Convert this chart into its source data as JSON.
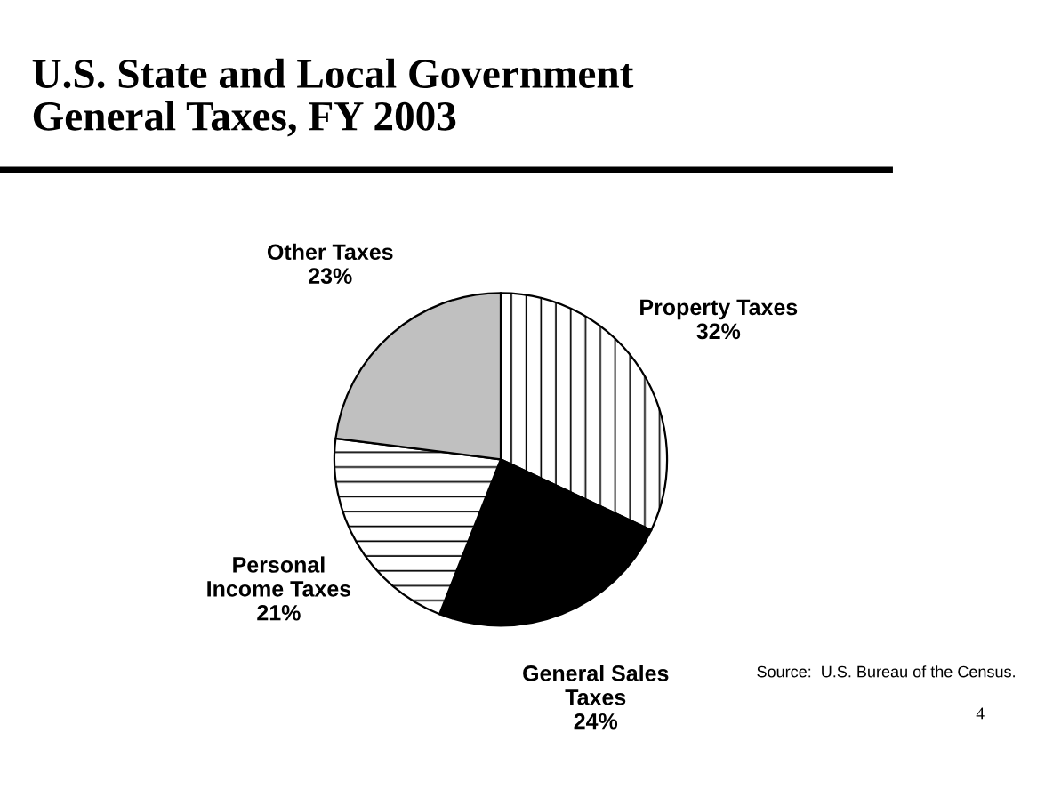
{
  "chart_data": {
    "type": "pie",
    "title": "U.S. State and Local Government\nGeneral Taxes, FY 2003",
    "categories": [
      "Property Taxes",
      "General Sales\nTaxes",
      "Personal\nIncome Taxes",
      "Other Taxes"
    ],
    "values": [
      32,
      24,
      21,
      23
    ],
    "value_labels": [
      "32%",
      "24%",
      "21%",
      "23%"
    ],
    "colors": [
      "#ffffff",
      "#000000",
      "#ffffff",
      "#c0c0c0"
    ],
    "annotations": [
      "Source:  U.S. Bureau of the Census.",
      "4"
    ]
  }
}
